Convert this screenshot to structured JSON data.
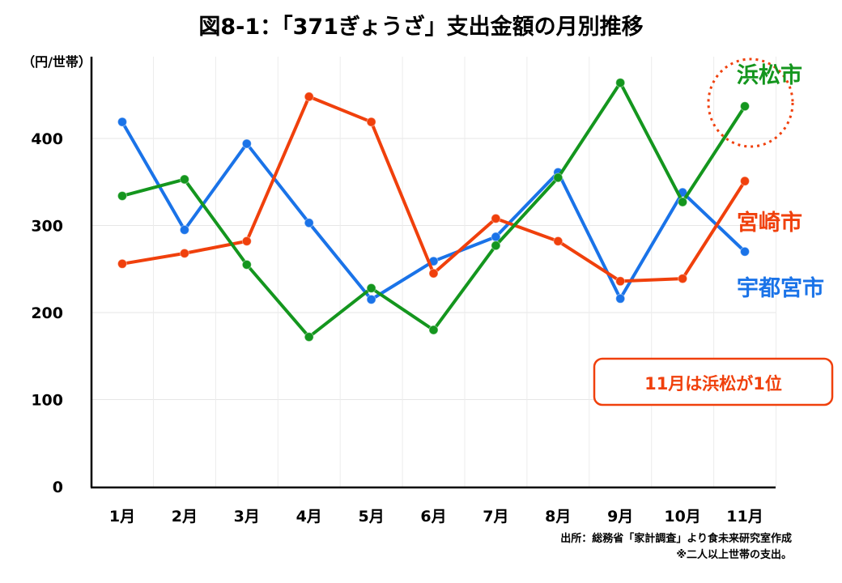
{
  "chart_data": {
    "type": "line",
    "title": "図8-1：「371ぎょうざ」支出金額の月別推移",
    "ylabel": "（円/世帯）",
    "xlabel": "",
    "ylim": [
      0,
      480
    ],
    "yticks": [
      0,
      100,
      200,
      300,
      400
    ],
    "ytick_labels": [
      "0",
      "100",
      "200",
      "300",
      "400"
    ],
    "grid": true,
    "categories": [
      "1月",
      "2月",
      "3月",
      "4月",
      "5月",
      "6月",
      "7月",
      "8月",
      "9月",
      "10月",
      "11月"
    ],
    "series": [
      {
        "name": "宇都宮市",
        "color": "#1a73e8",
        "values": [
          419,
          295,
          394,
          303,
          215,
          259,
          287,
          361,
          216,
          338,
          270
        ]
      },
      {
        "name": "宮崎市",
        "color": "#f0400c",
        "values": [
          256,
          268,
          282,
          448,
          419,
          245,
          308,
          282,
          236,
          239,
          351
        ]
      },
      {
        "name": "浜松市",
        "color": "#14961e",
        "values": [
          334,
          353,
          255,
          172,
          228,
          180,
          277,
          355,
          464,
          327,
          437
        ]
      }
    ],
    "annotation": "11月は浜松が1位",
    "source": "出所：総務省「家計調査」より食未来研究室作成",
    "note": "※二人以上世帯の支出。"
  }
}
